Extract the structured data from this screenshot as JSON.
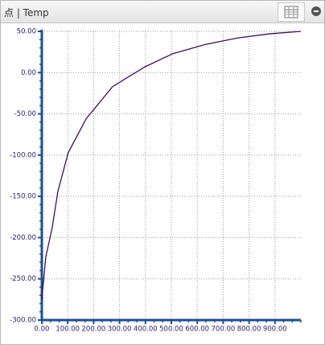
{
  "panel": {
    "title": "点 | Temp"
  },
  "chart_data": {
    "type": "line",
    "x": [
      0,
      15,
      40,
      62,
      102,
      171,
      273,
      398,
      506,
      630,
      755,
      879,
      1000
    ],
    "series": [
      {
        "color": "#3a0f5c",
        "values": [
          -275,
          -224,
          -188,
          -144,
          -97,
          -56,
          -17,
          7,
          23,
          34,
          42,
          47,
          50
        ]
      }
    ],
    "xlim": [
      0,
      1000
    ],
    "ylim": [
      -300,
      50
    ],
    "xticks": [
      {
        "value": 0,
        "label": "0.00"
      },
      {
        "value": 100,
        "label": "100.00"
      },
      {
        "value": 200,
        "label": "200.00"
      },
      {
        "value": 300,
        "label": "300.00"
      },
      {
        "value": 400,
        "label": "400.00"
      },
      {
        "value": 500,
        "label": "500.00"
      },
      {
        "value": 600,
        "label": "600.00"
      },
      {
        "value": 700,
        "label": "700.00"
      },
      {
        "value": 800,
        "label": "800.00"
      },
      {
        "value": 900,
        "label": "900.00"
      }
    ],
    "yticks": [
      {
        "value": 50,
        "label": "50.00"
      },
      {
        "value": 0,
        "label": "0.00"
      },
      {
        "value": -50,
        "label": "-50.00"
      },
      {
        "value": -100,
        "label": "-100.00"
      },
      {
        "value": -150,
        "label": "-150.00"
      },
      {
        "value": -200,
        "label": "-200.00"
      },
      {
        "value": -250,
        "label": "-250.00"
      },
      {
        "value": -300,
        "label": "-300.00"
      }
    ],
    "grid": true
  }
}
